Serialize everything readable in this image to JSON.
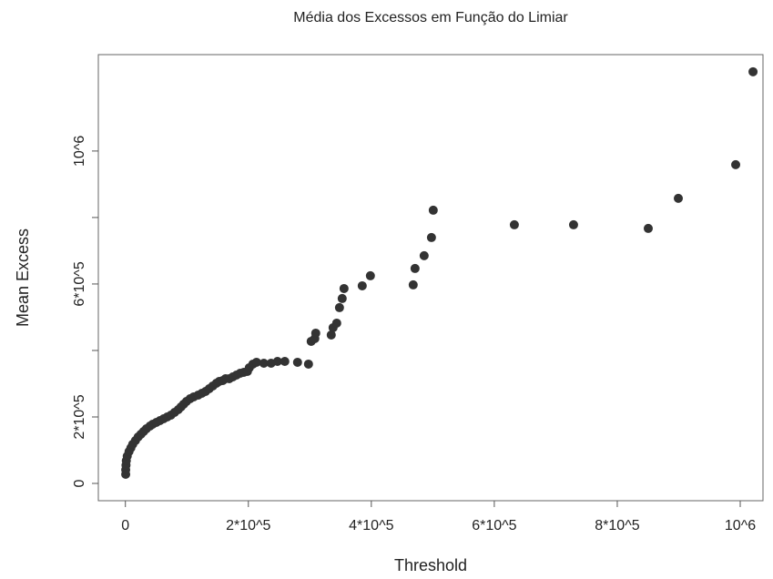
{
  "chart_data": {
    "type": "scatter",
    "title": "Média dos Excessos em Função do Limiar",
    "x_label": "Threshold",
    "y_label": "Mean Excess",
    "color": "#333333",
    "x": [
      500,
      500,
      1000,
      1500,
      3000,
      5900,
      8900,
      11900,
      16300,
      20700,
      25200,
      29600,
      34100,
      40000,
      44400,
      50400,
      56300,
      62200,
      68100,
      74100,
      80000,
      85900,
      90400,
      94800,
      99300,
      105200,
      111100,
      118500,
      124400,
      130400,
      136300,
      142200,
      148100,
      152600,
      158500,
      163000,
      168900,
      174800,
      180700,
      186700,
      192600,
      198500,
      201500,
      207400,
      213300,
      225200,
      237000,
      247400,
      259300,
      280000,
      297800,
      302200,
      308100,
      309600,
      334800,
      337800,
      343700,
      348200,
      352600,
      355600,
      385200,
      398500,
      468100,
      471100,
      485900,
      497800,
      500700,
      632600,
      728900,
      850400,
      899300,
      992600,
      1020800
    ],
    "y": [
      27400,
      41100,
      54800,
      68500,
      82200,
      95900,
      106800,
      117800,
      128800,
      139700,
      147900,
      156200,
      164400,
      172600,
      178100,
      183600,
      189000,
      194500,
      200000,
      205500,
      213700,
      221900,
      230100,
      238400,
      246600,
      254800,
      260300,
      265800,
      271200,
      276700,
      284900,
      293200,
      301400,
      306800,
      309600,
      315100,
      315100,
      320500,
      326000,
      331500,
      334200,
      337000,
      348000,
      358900,
      364400,
      361600,
      361600,
      367100,
      367100,
      364400,
      358900,
      427400,
      435600,
      452100,
      446600,
      468500,
      482200,
      528800,
      556200,
      586300,
      594500,
      624700,
      597300,
      646600,
      685000,
      739700,
      821900,
      778100,
      778100,
      767100,
      857600,
      958900,
      1238400
    ],
    "xlim": [
      -44000,
      1037000
    ],
    "ylim": [
      -52000,
      1290000
    ],
    "xticks": [
      0,
      {
        "value": 200000,
        "label": "2*10^5"
      },
      {
        "value": 400000,
        "label": "4*10^5"
      },
      {
        "value": 600000,
        "label": "6*10^5"
      },
      {
        "value": 800000,
        "label": "8*10^5"
      },
      {
        "value": 1000000,
        "label": "10^6"
      }
    ],
    "yticks": [
      0,
      {
        "value": 200000,
        "label": "2*10^5"
      },
      {
        "value": 400000,
        "label": null
      },
      {
        "value": 600000,
        "label": "6*10^5"
      },
      {
        "value": 800000,
        "label": null
      },
      {
        "value": 1000000,
        "label": "10^6"
      }
    ]
  }
}
